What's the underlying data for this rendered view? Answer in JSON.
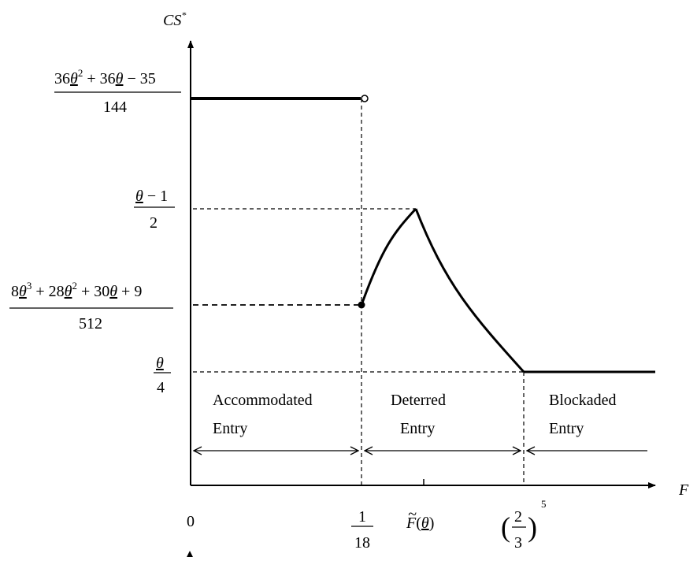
{
  "y_axis": {
    "label_base": "CS",
    "label_sup": "*"
  },
  "x_axis": {
    "label": "F",
    "origin": "0"
  },
  "y_ticks": {
    "top": {
      "n_a": "36",
      "n_b": "2",
      "n_c": " + 36",
      "n_d": " − 35",
      "den": "144",
      "var": "θ"
    },
    "peak": {
      "num_var": "θ",
      "num_rest": " − 1",
      "den": "2"
    },
    "start": {
      "n_a": "8",
      "n_b": "3",
      "n_c": " + 28",
      "n_d": "2",
      "n_e": " + 30",
      "n_f": " + 9",
      "den": "512",
      "var": "θ"
    },
    "flat": {
      "num_var": "θ",
      "den": "4"
    }
  },
  "x_ticks": {
    "first": {
      "num": "1",
      "den": "18"
    },
    "middle": {
      "tilde": "~",
      "base": "F",
      "open": "(",
      "var": "θ",
      "close": ")"
    },
    "last": {
      "num": "2",
      "den": "3",
      "exp": "5"
    }
  },
  "regions": [
    {
      "line1": "Accommodated",
      "line2": "Entry"
    },
    {
      "line1": "Deterred",
      "line2": "Entry"
    },
    {
      "line1": "Blockaded",
      "line2": "Entry"
    }
  ]
}
